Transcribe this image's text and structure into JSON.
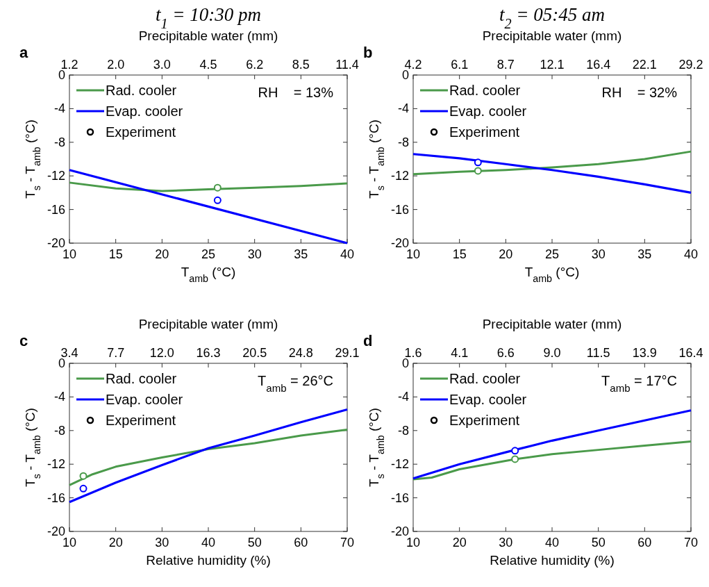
{
  "chart_data": [
    {
      "type": "line",
      "title": "t$_{1}$ = 10:30 pm",
      "xlabel": "T$_{amb}$ (°C)",
      "ylabel": "T$_{s}$ - T$_{amb}$ (°C)",
      "x2label": "Precipitable water (mm)",
      "annotations": [
        "a",
        "RH    = 13%",
        "Experiment",
        "1.2",
        "2.0",
        "3.0",
        "4.5",
        "6.2",
        "8.5",
        "11.4"
      ],
      "xlim": [
        10,
        40
      ],
      "xticks": [
        10,
        15,
        20,
        25,
        30,
        35,
        40
      ],
      "ylim": [
        -20,
        0
      ],
      "yticks": [
        -20,
        -16,
        -12,
        -8,
        -4,
        0
      ],
      "grid": false,
      "legend": "top left",
      "line_style": "solid",
      "series": [
        {
          "name": "Rad. cooler",
          "color": "#4a9a4a",
          "x": [
            10,
            15,
            20,
            25,
            30,
            35,
            40
          ],
          "values": [
            -12.8,
            -13.5,
            -13.8,
            -13.6,
            -13.4,
            -13.2,
            -12.9
          ]
        },
        {
          "name": "Evap. cooler",
          "color": "#0000ff",
          "x": [
            10,
            40
          ],
          "values": [
            -11.3,
            -20
          ]
        },
        {
          "type": "scatter",
          "marker": "circle",
          "color": "#000000",
          "colors": [
            "#4a9a4a",
            "#0000ff"
          ],
          "x": [
            26,
            26
          ],
          "values": [
            -13.4,
            -14.9
          ]
        }
      ]
    },
    {
      "type": "line",
      "title": "t$_{2}$ = 05:45 am",
      "xlabel": "T$_{amb}$ (°C)",
      "ylabel": "T$_{s}$ - T$_{amb}$ (°C)",
      "x2label": "Precipitable water (mm)",
      "annotations": [
        "b",
        "RH    = 32%",
        "Experiment",
        "4.2",
        "6.1",
        "8.7",
        "12.1",
        "16.4",
        "22.1",
        "29.2"
      ],
      "xlim": [
        10,
        40
      ],
      "xticks": [
        10,
        15,
        20,
        25,
        30,
        35,
        40
      ],
      "ylim": [
        -20,
        0
      ],
      "yticks": [
        -20,
        -16,
        -12,
        -8,
        -4,
        0
      ],
      "grid": false,
      "legend": "top left",
      "line_style": "solid",
      "series": [
        {
          "name": "Rad. cooler",
          "color": "#4a9a4a",
          "x": [
            10,
            15,
            20,
            25,
            30,
            35,
            40
          ],
          "values": [
            -11.8,
            -11.5,
            -11.3,
            -11.0,
            -10.6,
            -10.0,
            -9.1
          ]
        },
        {
          "name": "Evap. cooler",
          "color": "#0000ff",
          "x": [
            10,
            15,
            20,
            25,
            30,
            35,
            40
          ],
          "values": [
            -9.4,
            -9.9,
            -10.6,
            -11.3,
            -12.1,
            -13.0,
            -14.0
          ]
        },
        {
          "type": "scatter",
          "marker": "circle",
          "color": "#000000",
          "colors": [
            "#0000ff",
            "#4a9a4a"
          ],
          "x": [
            17,
            17
          ],
          "values": [
            -10.4,
            -11.4
          ]
        }
      ]
    },
    {
      "type": "line",
      "xlabel": "Relative humidity (%)",
      "ylabel": "T$_{s}$ - T$_{amb}$ (°C)",
      "x2label": "Precipitable water (mm)",
      "annotations": [
        "c",
        "T$_{amb}$ = 26°C",
        "Experiment",
        "3.4",
        "7.7",
        "12.0",
        "16.3",
        "20.5",
        "24.8",
        "29.1"
      ],
      "xlim": [
        10,
        70
      ],
      "xticks": [
        10,
        20,
        30,
        40,
        50,
        60,
        70
      ],
      "ylim": [
        -20,
        0
      ],
      "yticks": [
        -20,
        -16,
        -12,
        -8,
        -4,
        0
      ],
      "grid": false,
      "legend": "top left",
      "line_style": "solid",
      "series": [
        {
          "name": "Rad. cooler",
          "color": "#4a9a4a",
          "x": [
            10,
            15,
            20,
            30,
            40,
            50,
            60,
            70
          ],
          "values": [
            -14.5,
            -13.2,
            -12.3,
            -11.2,
            -10.2,
            -9.5,
            -8.6,
            -7.9
          ]
        },
        {
          "name": "Evap. cooler",
          "color": "#0000ff",
          "x": [
            10,
            20,
            30,
            40,
            50,
            60,
            70
          ],
          "values": [
            -16.5,
            -14.2,
            -12.1,
            -10.1,
            -8.6,
            -7.0,
            -5.5
          ]
        },
        {
          "type": "scatter",
          "marker": "circle",
          "color": "#000000",
          "colors": [
            "#4a9a4a",
            "#0000ff"
          ],
          "x": [
            13,
            13
          ],
          "values": [
            -13.4,
            -14.9
          ]
        }
      ]
    },
    {
      "type": "line",
      "xlabel": "Relative humidity (%)",
      "ylabel": "T$_{s}$ - T$_{amb}$ (°C)",
      "x2label": "Precipitable water (mm)",
      "annotations": [
        "d",
        "T$_{amb}$ = 17°C",
        "Experiment",
        "1.6",
        "4.1",
        "6.6",
        "9.0",
        "11.5",
        "13.9",
        "16.4"
      ],
      "xlim": [
        10,
        70
      ],
      "xticks": [
        10,
        20,
        30,
        40,
        50,
        60,
        70
      ],
      "ylim": [
        -20,
        0
      ],
      "yticks": [
        -20,
        -16,
        -12,
        -8,
        -4,
        0
      ],
      "grid": false,
      "legend": "top left",
      "line_style": "solid",
      "series": [
        {
          "name": "Rad. cooler",
          "color": "#4a9a4a",
          "x": [
            10,
            14,
            20,
            32,
            40,
            50,
            60,
            70
          ],
          "values": [
            -13.8,
            -13.6,
            -12.6,
            -11.4,
            -10.8,
            -10.3,
            -9.8,
            -9.3
          ]
        },
        {
          "name": "Evap. cooler",
          "color": "#0000ff",
          "x": [
            10,
            20,
            32,
            40,
            50,
            60,
            70
          ],
          "values": [
            -13.7,
            -12.0,
            -10.3,
            -9.2,
            -8.0,
            -6.8,
            -5.6
          ]
        },
        {
          "type": "scatter",
          "marker": "circle",
          "color": "#000000",
          "colors": [
            "#0000ff",
            "#4a9a4a"
          ],
          "x": [
            32,
            32
          ],
          "values": [
            -10.4,
            -11.4
          ]
        }
      ]
    }
  ]
}
